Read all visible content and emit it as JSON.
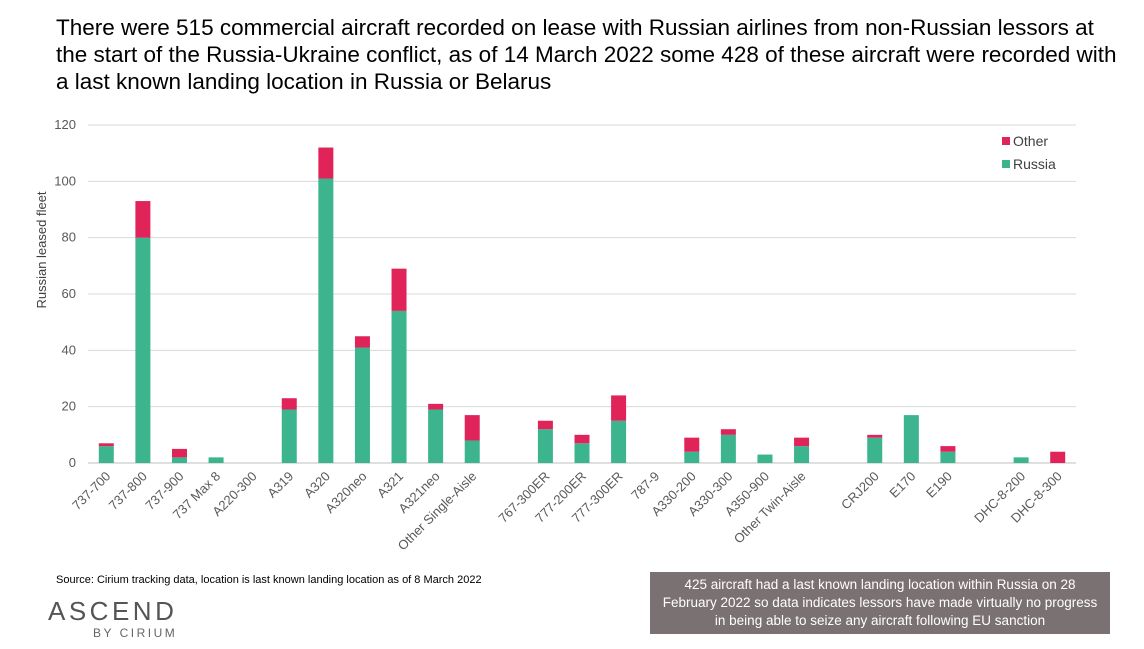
{
  "title": "There were 515 commercial aircraft recorded on lease with Russian airlines from non-Russian lessors at the start of the Russia-Ukraine conflict, as of 14 March 2022 some 428 of these aircraft were recorded with a last known landing location in Russia or Belarus",
  "source": "Source: Cirium tracking data, location is last known landing location as of 8 March 2022",
  "logo": {
    "main": "ASCEND",
    "sub": "BY CIRIUM"
  },
  "note": "425 aircraft had a last known landing location within Russia on 28 February 2022 so data indicates lessors have made virtually no progress in being able to seize any aircraft following EU sanction",
  "colors": {
    "russia": "#3cb48e",
    "other": "#e0245a",
    "grid": "#d9d9d9",
    "note_bg": "#7a7172"
  },
  "chart_data": {
    "type": "bar",
    "stacked": true,
    "ylabel": "Russian leased fleet",
    "ylim": [
      0,
      120
    ],
    "yticks": [
      0,
      20,
      40,
      60,
      80,
      100,
      120
    ],
    "grid": true,
    "legend_position": "top-right",
    "categories": [
      "737-700",
      "737-800",
      "737-900",
      "737 Max 8",
      "A220-300",
      "A319",
      "A320",
      "A320neo",
      "A321",
      "A321neo",
      "Other Single-Aisle",
      "",
      "767-300ER",
      "777-200ER",
      "777-300ER",
      "787-9",
      "A330-200",
      "A330-300",
      "A350-900",
      "Other Twin-Aisle",
      "",
      "CRJ200",
      "E170",
      "E190",
      "",
      "DHC-8-200",
      "DHC-8-300"
    ],
    "series": [
      {
        "name": "Russia",
        "color": "#3cb48e",
        "values": [
          6,
          80,
          2,
          2,
          0,
          19,
          101,
          41,
          54,
          19,
          8,
          null,
          12,
          7,
          15,
          0,
          4,
          10,
          3,
          6,
          null,
          9,
          17,
          4,
          null,
          2,
          0
        ]
      },
      {
        "name": "Other",
        "color": "#e0245a",
        "values": [
          1,
          13,
          3,
          0,
          0,
          4,
          11,
          4,
          15,
          2,
          9,
          null,
          3,
          3,
          9,
          0,
          5,
          2,
          0,
          3,
          null,
          1,
          0,
          2,
          null,
          0,
          4
        ]
      }
    ],
    "legend": [
      "Other",
      "Russia"
    ]
  }
}
